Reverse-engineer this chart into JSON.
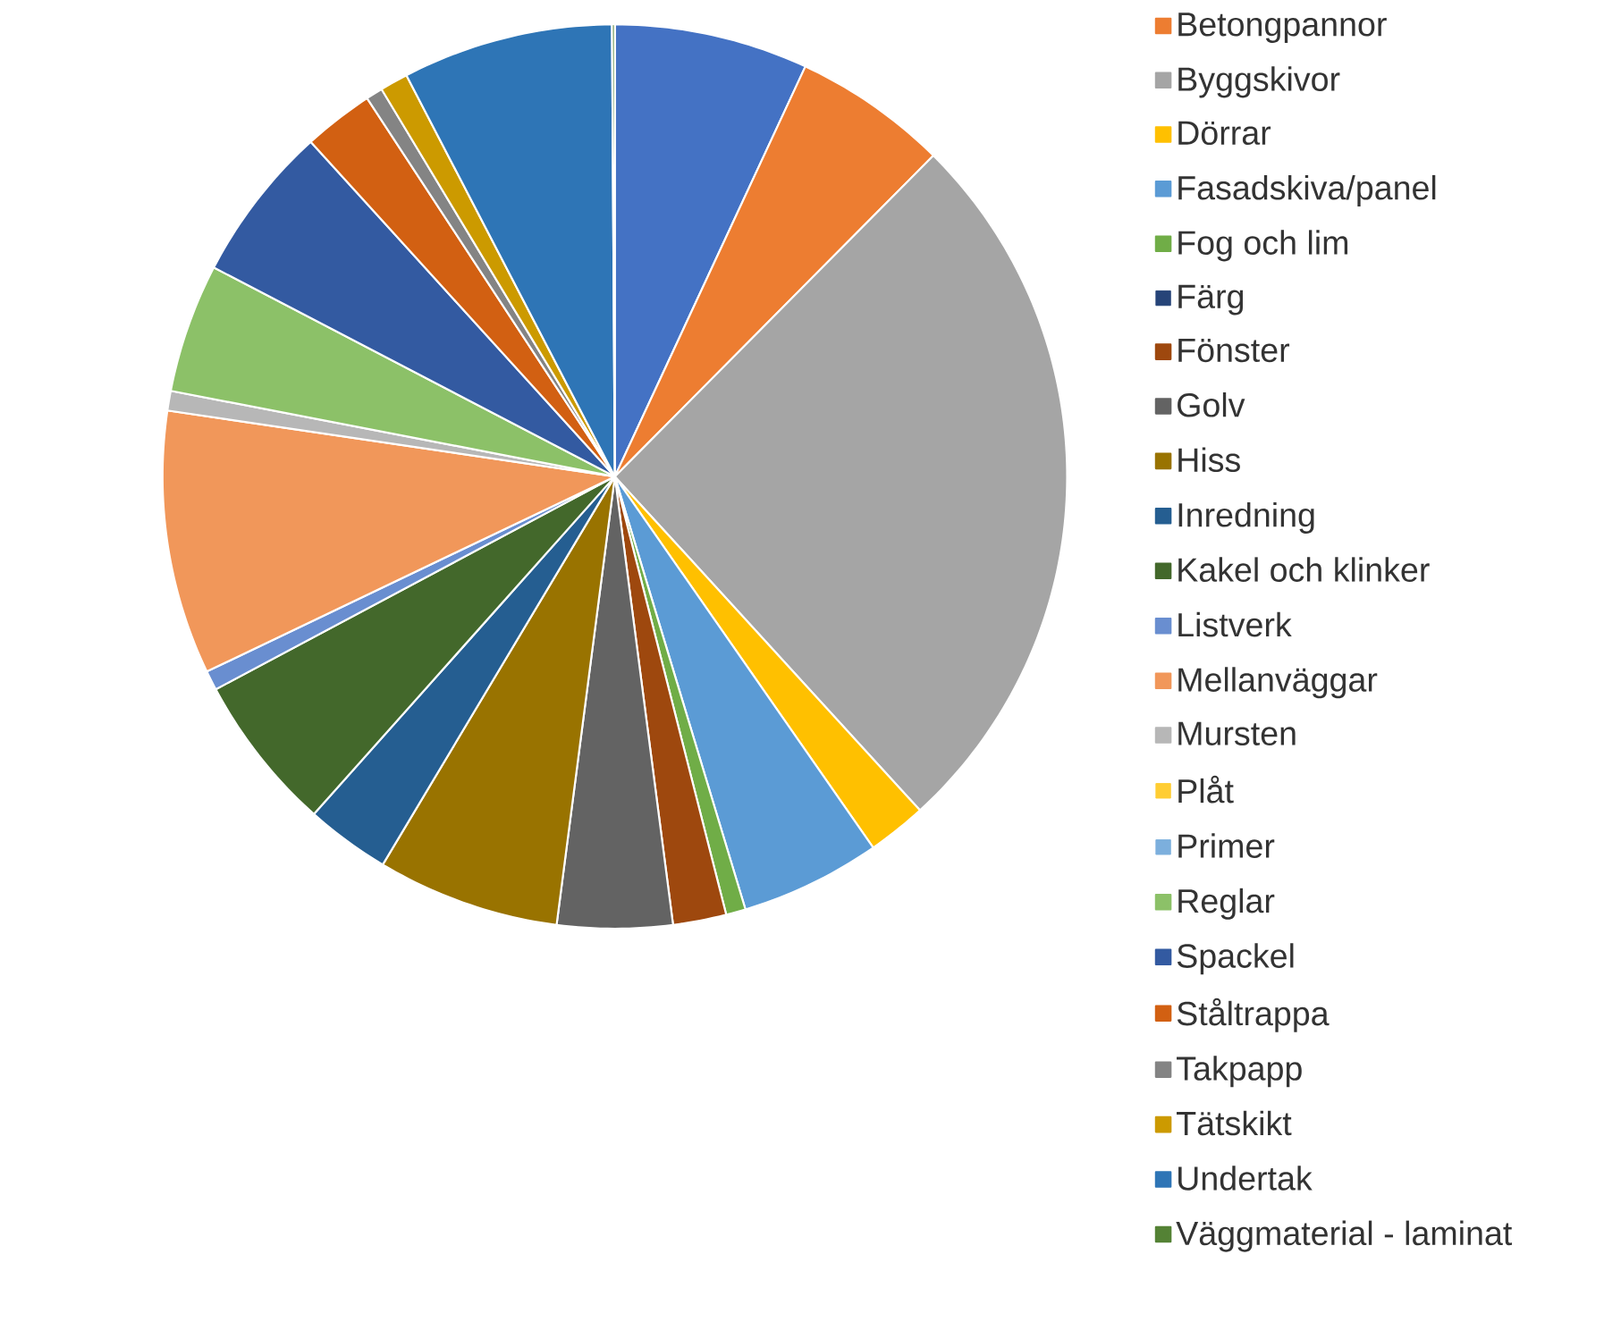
{
  "chart_data": {
    "type": "pie",
    "legend": "right",
    "categories": [
      null,
      "Betongpannor",
      "Byggskivor",
      "Dörrar",
      "Fasadskiva/panel",
      "Fog och lim",
      "Färg",
      "Fönster",
      "Golv",
      "Hiss",
      "Inredning",
      "Kakel och klinker",
      "Listverk",
      "Mellanväggar",
      "Mursten",
      "Plåt",
      "Primer",
      "Reglar",
      "Spackel",
      "Ståltrappa",
      "Takpapp",
      "Tätskikt",
      "Undertak",
      "Väggmaterial - laminat"
    ],
    "values": [
      6.9,
      5.5,
      25.7,
      2.1,
      5.0,
      0.7,
      null,
      1.9,
      4.1,
      6.5,
      3.0,
      5.6,
      0.7,
      9.4,
      0.7,
      null,
      null,
      4.6,
      5.6,
      2.5,
      0.6,
      1.0,
      7.5,
      0.1
    ],
    "colors": [
      "#4472c4",
      "#ed7d31",
      "#a5a5a5",
      "#ffc000",
      "#5b9bd5",
      "#70ad47",
      "#264478",
      "#9e480e",
      "#636363",
      "#997300",
      "#255e91",
      "#43682b",
      "#698ed0",
      "#f1975a",
      "#b7b7b7",
      "#ffcd33",
      "#7cafdd",
      "#8cc168",
      "#335aa1",
      "#d26012",
      "#848484",
      "#cc9a00",
      "#2e75b6",
      "#548235"
    ]
  }
}
